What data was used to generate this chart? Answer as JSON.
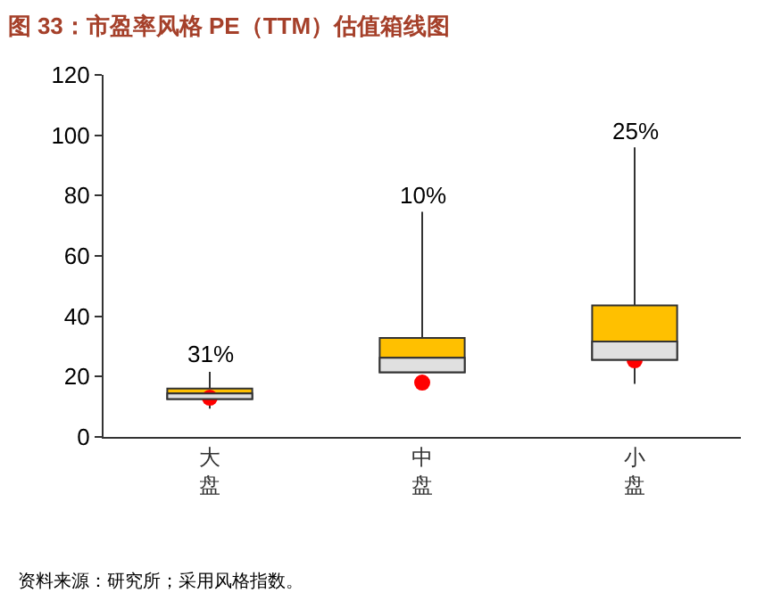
{
  "chart_data": {
    "type": "box",
    "title": "图 33：市盈率风格 PE（TTM）估值箱线图",
    "categories": [
      "大盘",
      "中盘",
      "小盘"
    ],
    "ylim": [
      0,
      120
    ],
    "yticks": [
      0,
      20,
      40,
      60,
      80,
      100,
      120
    ],
    "grid": false,
    "legend": false,
    "series": [
      {
        "type": "box",
        "color": "#ffc000",
        "boxes": [
          {
            "low": 9.4,
            "q1": 12.6,
            "median": 14.4,
            "q3": 16,
            "high": 21.6
          },
          {
            "low": 21.4,
            "q1": 21.4,
            "median": 26.2,
            "q3": 32.8,
            "high": 74.6
          },
          {
            "low": 17.6,
            "q1": 25.6,
            "median": 31.6,
            "q3": 43.6,
            "high": 96
          }
        ]
      },
      {
        "type": "scatter",
        "color": "#ff0000",
        "x": [
          "大盘",
          "中盘",
          "小盘"
        ],
        "values": [
          13,
          18,
          25.4
        ]
      }
    ],
    "annotations": [
      {
        "text": "31%",
        "x": "大盘",
        "y": 21.6
      },
      {
        "text": "10%",
        "x": "中盘",
        "y": 74.6
      },
      {
        "text": "25%",
        "x": "小盘",
        "y": 96
      },
      "资料来源：研究所；采用风格指数。"
    ]
  }
}
